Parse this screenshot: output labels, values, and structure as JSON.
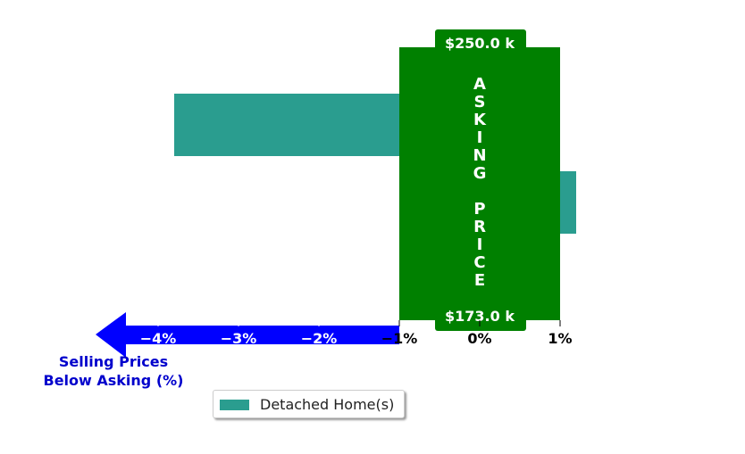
{
  "chart_data": {
    "type": "bar",
    "orientation": "horizontal",
    "categories": [
      "",
      "",
      ""
    ],
    "series": [
      {
        "name": "Detached Home(s)",
        "values": [
          -3.8,
          1.2,
          -0.1
        ],
        "color": "#2a9d8f"
      }
    ],
    "xlim": [
      -4.5,
      1.2
    ],
    "x_ticks": [
      -4,
      -3,
      -2,
      -1,
      0,
      1
    ],
    "x_tick_labels": [
      "−4%",
      "−3%",
      "−2%",
      "−1%",
      "0%",
      "1%"
    ],
    "grid": false,
    "legend_position": "bottom-center",
    "asking_band": {
      "range": [
        -1,
        1
      ],
      "color": "#008000",
      "label": "ASKING PRICE",
      "top_label": "$250.0 k",
      "bottom_label": "$173.0 k"
    },
    "arrow": {
      "color": "#0000ff",
      "label_line1": "Selling Prices",
      "label_line2": "Below Asking (%)",
      "label_color": "#0000cc"
    }
  }
}
